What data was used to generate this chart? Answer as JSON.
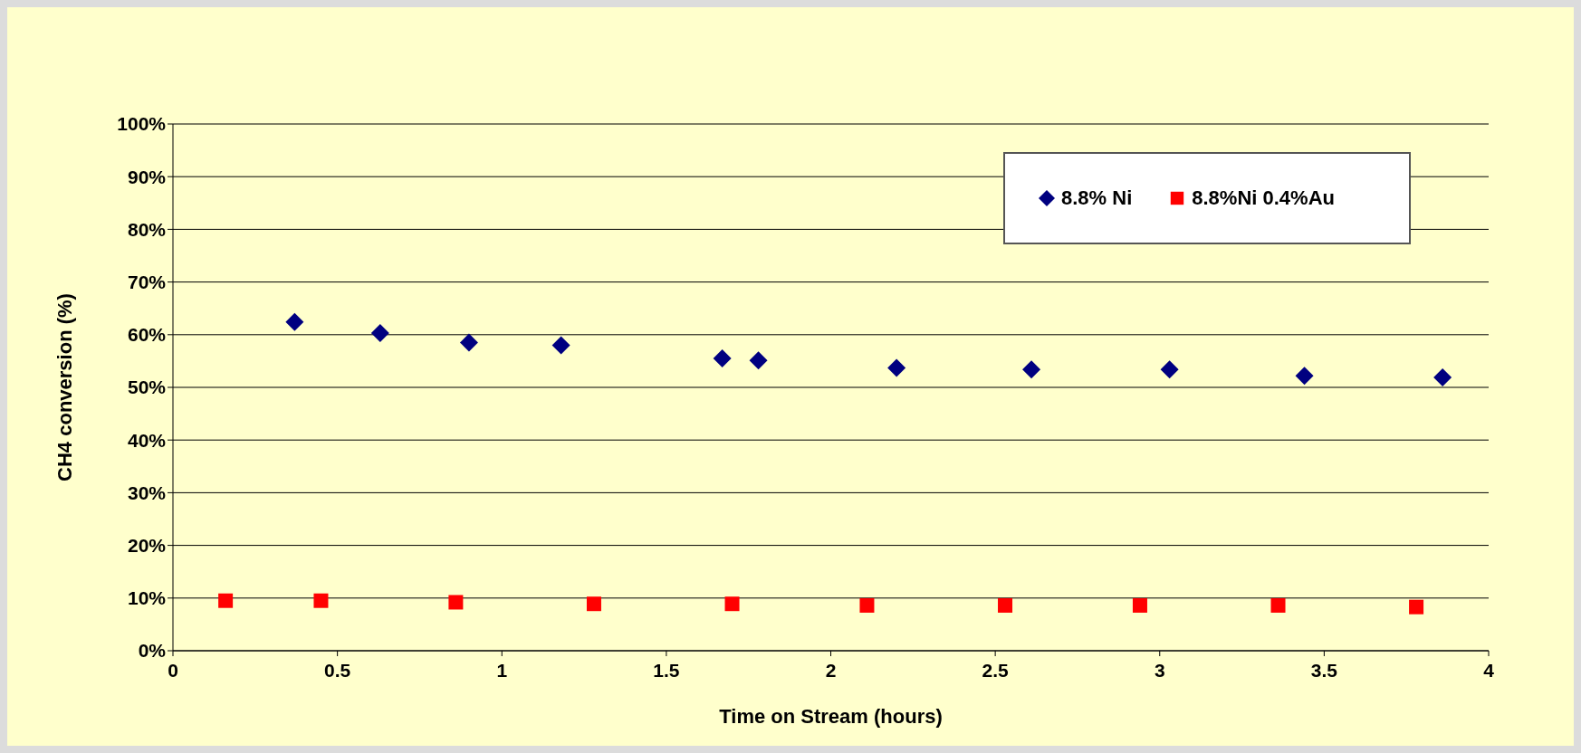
{
  "chart_data": {
    "type": "scatter",
    "xlabel": "Time on Stream (hours)",
    "ylabel": "CH4 conversion (%)",
    "xlim": [
      0,
      4
    ],
    "xticks": [
      0,
      0.5,
      1,
      1.5,
      2,
      2.5,
      3,
      3.5,
      4
    ],
    "ylim": [
      0,
      100
    ],
    "yticks": [
      {
        "value": 0,
        "label": "0%"
      },
      {
        "value": 10,
        "label": "10%"
      },
      {
        "value": 20,
        "label": "20%"
      },
      {
        "value": 30,
        "label": "30%"
      },
      {
        "value": 40,
        "label": "40%"
      },
      {
        "value": 50,
        "label": "50%"
      },
      {
        "value": 60,
        "label": "60%"
      },
      {
        "value": 70,
        "label": "70%"
      },
      {
        "value": 80,
        "label": "80%"
      },
      {
        "value": 90,
        "label": "90%"
      },
      {
        "value": 100,
        "label": "100%"
      }
    ],
    "grid": "y",
    "legend": "top right",
    "series": [
      {
        "name": "8.8% Ni",
        "color": "#000080",
        "marker": "diamond",
        "x": [
          0.37,
          0.63,
          0.9,
          1.18,
          1.67,
          1.78,
          2.2,
          2.61,
          3.03,
          3.44,
          3.86
        ],
        "values": [
          62.4,
          60.3,
          58.5,
          58.0,
          55.5,
          55.1,
          53.7,
          53.4,
          53.4,
          52.2,
          51.9
        ]
      },
      {
        "name": "8.8%Ni 0.4%Au",
        "color": "#ff0000",
        "marker": "square",
        "x": [
          0.16,
          0.45,
          0.86,
          1.28,
          1.7,
          2.11,
          2.53,
          2.94,
          3.36,
          3.78
        ],
        "values": [
          9.5,
          9.5,
          9.2,
          8.9,
          8.9,
          8.6,
          8.6,
          8.6,
          8.6,
          8.3
        ]
      }
    ]
  }
}
